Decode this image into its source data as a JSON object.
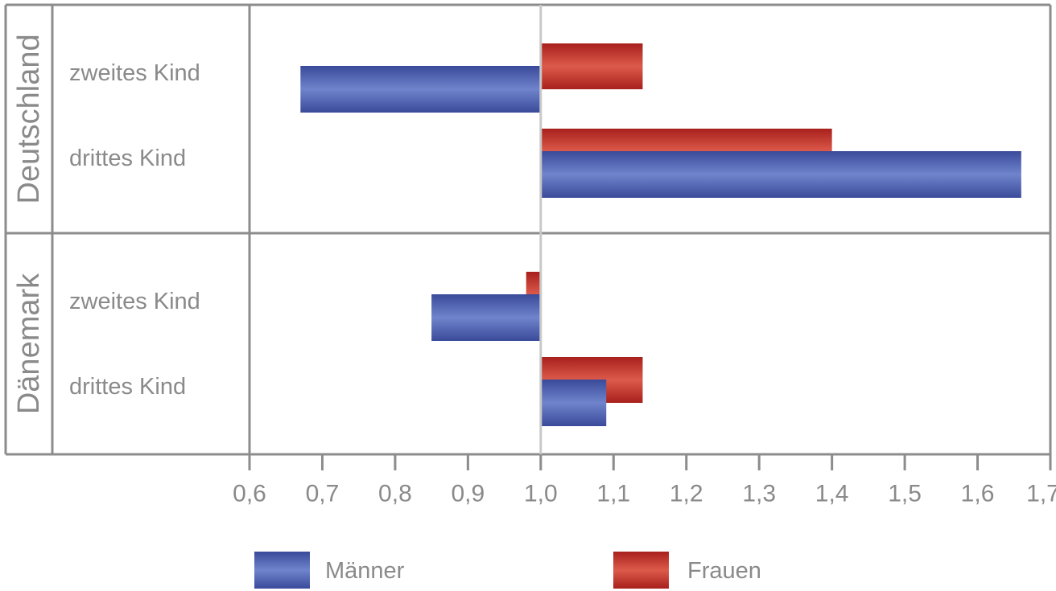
{
  "chart_data": {
    "type": "bar",
    "orientation": "horizontal",
    "baseline": 1.0,
    "xlim": [
      0.6,
      1.7
    ],
    "xticks": [
      "0,6",
      "0,7",
      "0,8",
      "0,9",
      "1,0",
      "1,1",
      "1,2",
      "1,3",
      "1,4",
      "1,5",
      "1,6",
      "1,7"
    ],
    "grid": false,
    "legend_position": "bottom",
    "groups": [
      {
        "label": "Deutschland",
        "categories": [
          {
            "label": "zweites Kind",
            "values": {
              "Männer": 0.67,
              "Frauen": 1.14
            }
          },
          {
            "label": "drittes Kind",
            "values": {
              "Männer": 1.66,
              "Frauen": 1.4
            }
          }
        ]
      },
      {
        "label": "Dänemark",
        "categories": [
          {
            "label": "zweites Kind",
            "values": {
              "Männer": 0.85,
              "Frauen": 0.98
            }
          },
          {
            "label": "drittes Kind",
            "values": {
              "Männer": 1.09,
              "Frauen": 1.14
            }
          }
        ]
      }
    ],
    "series": [
      {
        "name": "Männer",
        "color": "#4a5fb0"
      },
      {
        "name": "Frauen",
        "color": "#c0302a"
      }
    ]
  }
}
